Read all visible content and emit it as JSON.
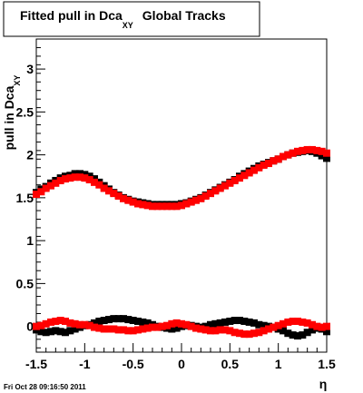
{
  "chart_data": {
    "type": "scatter",
    "title_main": "Fitted pull in Dca",
    "title_sub": "XY",
    "title_suffix": "Global Tracks",
    "xlabel": "η",
    "ylabel_main": "pull in Dca",
    "ylabel_sub": "XY",
    "xlim": [
      -1.5,
      1.5
    ],
    "ylim": [
      -0.3,
      3.35
    ],
    "xticks": [
      -1.5,
      -1,
      -0.5,
      0,
      0.5,
      1,
      1.5
    ],
    "xtick_labels": [
      "-1.5",
      "-1",
      "-0.5",
      "0",
      "0.5",
      "1",
      "1.5"
    ],
    "yticks": [
      0,
      0.5,
      1,
      1.5,
      2,
      2.5,
      3
    ],
    "ytick_labels": [
      "0",
      "0.5",
      "1",
      "1.5",
      "2",
      "2.5",
      "3"
    ],
    "grid": false,
    "series": [
      {
        "color": "#000000",
        "x": [
          -1.5,
          -1.45,
          -1.4,
          -1.35,
          -1.3,
          -1.25,
          -1.2,
          -1.15,
          -1.1,
          -1.05,
          -1.0,
          -0.95,
          -0.9,
          -0.85,
          -0.8,
          -0.75,
          -0.7,
          -0.65,
          -0.6,
          -0.55,
          -0.5,
          -0.45,
          -0.4,
          -0.35,
          -0.3,
          -0.25,
          -0.2,
          -0.15,
          -0.1,
          -0.05,
          0.0,
          0.05,
          0.1,
          0.15,
          0.2,
          0.25,
          0.3,
          0.35,
          0.4,
          0.45,
          0.5,
          0.55,
          0.6,
          0.65,
          0.7,
          0.75,
          0.8,
          0.85,
          0.9,
          0.95,
          1.0,
          1.05,
          1.1,
          1.15,
          1.2,
          1.25,
          1.3,
          1.35,
          1.4,
          1.45,
          1.5
        ],
        "values": [
          1.56,
          1.6,
          1.63,
          1.67,
          1.7,
          1.73,
          1.75,
          1.76,
          1.78,
          1.78,
          1.77,
          1.75,
          1.72,
          1.68,
          1.64,
          1.6,
          1.56,
          1.53,
          1.5,
          1.48,
          1.46,
          1.45,
          1.44,
          1.43,
          1.42,
          1.42,
          1.42,
          1.42,
          1.42,
          1.42,
          1.43,
          1.44,
          1.46,
          1.48,
          1.5,
          1.53,
          1.56,
          1.59,
          1.62,
          1.65,
          1.68,
          1.71,
          1.75,
          1.78,
          1.81,
          1.84,
          1.87,
          1.89,
          1.91,
          1.93,
          1.95,
          1.98,
          2.0,
          2.02,
          2.03,
          2.04,
          2.05,
          2.04,
          2.02,
          1.99,
          1.96
        ]
      },
      {
        "color": "#ff0000",
        "x": [
          -1.5,
          -1.45,
          -1.4,
          -1.35,
          -1.3,
          -1.25,
          -1.2,
          -1.15,
          -1.1,
          -1.05,
          -1.0,
          -0.95,
          -0.9,
          -0.85,
          -0.8,
          -0.75,
          -0.7,
          -0.65,
          -0.6,
          -0.55,
          -0.5,
          -0.45,
          -0.4,
          -0.35,
          -0.3,
          -0.25,
          -0.2,
          -0.15,
          -0.1,
          -0.05,
          0.0,
          0.05,
          0.1,
          0.15,
          0.2,
          0.25,
          0.3,
          0.35,
          0.4,
          0.45,
          0.5,
          0.55,
          0.6,
          0.65,
          0.7,
          0.75,
          0.8,
          0.85,
          0.9,
          0.95,
          1.0,
          1.05,
          1.1,
          1.15,
          1.2,
          1.25,
          1.3,
          1.35,
          1.4,
          1.45,
          1.5
        ],
        "values": [
          1.54,
          1.57,
          1.61,
          1.64,
          1.67,
          1.7,
          1.72,
          1.73,
          1.74,
          1.74,
          1.73,
          1.71,
          1.68,
          1.65,
          1.61,
          1.58,
          1.55,
          1.52,
          1.49,
          1.47,
          1.45,
          1.43,
          1.42,
          1.41,
          1.4,
          1.4,
          1.4,
          1.4,
          1.4,
          1.4,
          1.41,
          1.43,
          1.45,
          1.47,
          1.49,
          1.52,
          1.55,
          1.58,
          1.61,
          1.64,
          1.67,
          1.7,
          1.73,
          1.76,
          1.79,
          1.82,
          1.85,
          1.88,
          1.9,
          1.93,
          1.95,
          1.98,
          2.0,
          2.02,
          2.04,
          2.05,
          2.06,
          2.06,
          2.05,
          2.04,
          2.02
        ]
      },
      {
        "color": "#000000",
        "x": [
          -1.5,
          -1.45,
          -1.4,
          -1.35,
          -1.3,
          -1.25,
          -1.2,
          -1.15,
          -1.1,
          -1.05,
          -1.0,
          -0.95,
          -0.9,
          -0.85,
          -0.8,
          -0.75,
          -0.7,
          -0.65,
          -0.6,
          -0.55,
          -0.5,
          -0.45,
          -0.4,
          -0.35,
          -0.3,
          -0.25,
          -0.2,
          -0.15,
          -0.1,
          -0.05,
          0.0,
          0.05,
          0.1,
          0.15,
          0.2,
          0.25,
          0.3,
          0.35,
          0.4,
          0.45,
          0.5,
          0.55,
          0.6,
          0.65,
          0.7,
          0.75,
          0.8,
          0.85,
          0.9,
          0.95,
          1.0,
          1.05,
          1.1,
          1.15,
          1.2,
          1.25,
          1.3,
          1.35,
          1.4,
          1.45,
          1.5
        ],
        "values": [
          -0.04,
          -0.06,
          -0.07,
          -0.06,
          -0.05,
          -0.06,
          -0.07,
          -0.05,
          -0.03,
          -0.01,
          0.01,
          0.02,
          0.04,
          0.06,
          0.07,
          0.08,
          0.09,
          0.09,
          0.09,
          0.08,
          0.07,
          0.06,
          0.05,
          0.04,
          0.02,
          0.0,
          -0.01,
          -0.02,
          -0.03,
          -0.02,
          0.0,
          0.01,
          0.01,
          0.0,
          -0.01,
          0.0,
          0.02,
          0.03,
          0.04,
          0.05,
          0.06,
          0.07,
          0.07,
          0.06,
          0.05,
          0.04,
          0.02,
          0.01,
          0.0,
          -0.01,
          -0.03,
          -0.05,
          -0.08,
          -0.1,
          -0.11,
          -0.1,
          -0.07,
          -0.04,
          -0.02,
          -0.03,
          -0.06
        ]
      },
      {
        "color": "#ff0000",
        "x": [
          -1.5,
          -1.45,
          -1.4,
          -1.35,
          -1.3,
          -1.25,
          -1.2,
          -1.15,
          -1.1,
          -1.05,
          -1.0,
          -0.95,
          -0.9,
          -0.85,
          -0.8,
          -0.75,
          -0.7,
          -0.65,
          -0.6,
          -0.55,
          -0.5,
          -0.45,
          -0.4,
          -0.35,
          -0.3,
          -0.25,
          -0.2,
          -0.15,
          -0.1,
          -0.05,
          0.0,
          0.05,
          0.1,
          0.15,
          0.2,
          0.25,
          0.3,
          0.35,
          0.4,
          0.45,
          0.5,
          0.55,
          0.6,
          0.65,
          0.7,
          0.75,
          0.8,
          0.85,
          0.9,
          0.95,
          1.0,
          1.05,
          1.1,
          1.15,
          1.2,
          1.25,
          1.3,
          1.35,
          1.4,
          1.45,
          1.5
        ],
        "values": [
          0.0,
          0.01,
          0.03,
          0.05,
          0.06,
          0.07,
          0.06,
          0.04,
          0.03,
          0.02,
          0.02,
          0.01,
          -0.01,
          -0.02,
          -0.03,
          -0.03,
          -0.03,
          -0.04,
          -0.04,
          -0.05,
          -0.05,
          -0.04,
          -0.03,
          -0.02,
          -0.01,
          -0.01,
          0.0,
          0.01,
          0.03,
          0.04,
          0.03,
          0.02,
          0.0,
          -0.02,
          -0.03,
          -0.04,
          -0.05,
          -0.05,
          -0.04,
          -0.04,
          -0.05,
          -0.07,
          -0.08,
          -0.09,
          -0.09,
          -0.08,
          -0.07,
          -0.05,
          -0.03,
          -0.01,
          0.01,
          0.03,
          0.05,
          0.06,
          0.06,
          0.05,
          0.04,
          0.02,
          0.0,
          -0.01,
          0.0
        ]
      }
    ],
    "footer_text": "Fri Oct 28 09:16:50 2011"
  }
}
